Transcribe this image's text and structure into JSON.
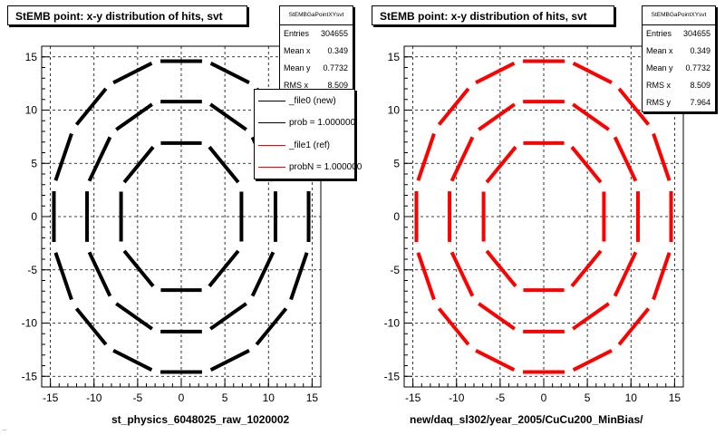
{
  "pads": [
    {
      "title": "StEMB point: x-y distribution of hits, svt",
      "xlabel": "st_physics_6048025_raw_1020002",
      "stats": {
        "name": "StEMBGaPointXYsvt",
        "rows": [
          {
            "label": "Entries",
            "value": "304655"
          },
          {
            "label": "Mean x",
            "value": "0.349"
          },
          {
            "label": "Mean y",
            "value": "0.7732"
          },
          {
            "label": "RMS x",
            "value": "8.509"
          }
        ]
      },
      "legend": [
        {
          "label": "_file0 (new)",
          "color": "#000000"
        },
        {
          "label": "prob = 1.000000",
          "color": "#000000"
        },
        {
          "label": "_file1 (ref)",
          "color": "#ff0000"
        },
        {
          "label": "probN = 1.000000",
          "color": "#ff0000"
        }
      ]
    },
    {
      "title": "StEMB point: x-y distribution of hits, svt",
      "xlabel": "new/daq_sl302/year_2005/CuCu200_MinBias/",
      "stats": {
        "name": "StEMBGaPointXYsvt",
        "rows": [
          {
            "label": "Entries",
            "value": "304655"
          },
          {
            "label": "Mean x",
            "value": "0.349"
          },
          {
            "label": "Mean y",
            "value": "0.7732"
          },
          {
            "label": "RMS x",
            "value": "8.509"
          },
          {
            "label": "RMS y",
            "value": "7.964"
          }
        ]
      }
    }
  ],
  "footer": "...",
  "chart_data": [
    {
      "type": "scatter",
      "title": "StEMB point: x-y distribution of hits, svt",
      "xlabel": "st_physics_6048025_raw_1020002",
      "ylabel": "",
      "xlim": [
        -16,
        16
      ],
      "ylim": [
        -16,
        16
      ],
      "xticks": [
        "-15",
        "-10",
        "-5",
        "0",
        "5",
        "10",
        "15"
      ],
      "yticks": [
        "15",
        "10",
        "5",
        "0",
        "-5",
        "-10",
        "-15"
      ],
      "grid": true,
      "legend_position": "top-right",
      "marker_color": "#000000",
      "series": [
        {
          "name": "_file0 (new)",
          "color": "#000000"
        },
        {
          "name": "_file1 (ref)",
          "color": "#ff0000"
        }
      ],
      "layers": [
        {
          "radius": 6.9,
          "ladders": 8,
          "phase_deg": 90
        },
        {
          "radius": 10.8,
          "ladders": 12,
          "phase_deg": 90
        },
        {
          "radius": 14.6,
          "ladders": 16,
          "phase_deg": 90
        }
      ]
    },
    {
      "type": "scatter",
      "title": "StEMB point: x-y distribution of hits, svt",
      "xlabel": "new/daq_sl302/year_2005/CuCu200_MinBias/",
      "ylabel": "",
      "xlim": [
        -16,
        16
      ],
      "ylim": [
        -16,
        16
      ],
      "xticks": [
        "-15",
        "-10",
        "-5",
        "0",
        "5",
        "10",
        "15"
      ],
      "yticks": [
        "15",
        "10",
        "5",
        "0",
        "-5",
        "-10",
        "-15"
      ],
      "grid": true,
      "marker_color": "#ff0000",
      "layers": [
        {
          "radius": 6.9,
          "ladders": 8,
          "phase_deg": 90
        },
        {
          "radius": 10.8,
          "ladders": 12,
          "phase_deg": 90
        },
        {
          "radius": 14.6,
          "ladders": 16,
          "phase_deg": 90
        }
      ]
    }
  ]
}
